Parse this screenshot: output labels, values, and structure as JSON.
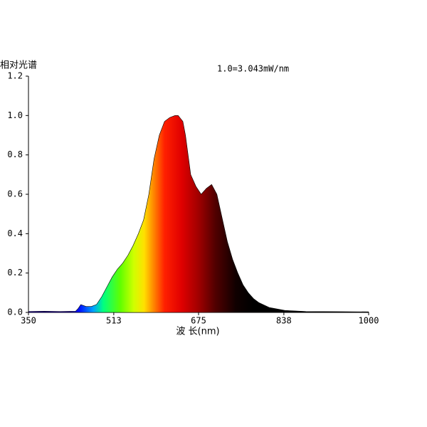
{
  "chart_data": {
    "type": "area",
    "title": "相对光谱",
    "annotation": "1.0=3.043mW/nm",
    "x_label": "波 长(nm)",
    "x": [
      350,
      380,
      410,
      440,
      445,
      450,
      455,
      460,
      470,
      480,
      490,
      500,
      510,
      520,
      530,
      540,
      550,
      560,
      570,
      580,
      590,
      600,
      610,
      620,
      630,
      636,
      645,
      650,
      655,
      660,
      670,
      680,
      690,
      700,
      710,
      720,
      730,
      740,
      750,
      760,
      770,
      780,
      790,
      810,
      840,
      880,
      940,
      1000
    ],
    "values": [
      0.005,
      0.006,
      0.005,
      0.006,
      0.02,
      0.04,
      0.035,
      0.03,
      0.03,
      0.04,
      0.08,
      0.13,
      0.18,
      0.22,
      0.25,
      0.29,
      0.34,
      0.4,
      0.47,
      0.6,
      0.78,
      0.9,
      0.97,
      0.99,
      1.0,
      1.0,
      0.97,
      0.9,
      0.8,
      0.7,
      0.64,
      0.6,
      0.63,
      0.65,
      0.6,
      0.48,
      0.36,
      0.27,
      0.2,
      0.14,
      0.1,
      0.07,
      0.05,
      0.025,
      0.01,
      0.005,
      0.004,
      0.003
    ],
    "xlim": [
      350,
      1000
    ],
    "ylim": [
      0,
      1.2
    ],
    "xticks": [
      350,
      513,
      675,
      838,
      1000
    ],
    "yticks": [
      {
        "value": 0,
        "label": "0.0"
      },
      0.2,
      0.4,
      0.6,
      0.8,
      {
        "value": 1,
        "label": "1.0"
      },
      1.2
    ]
  }
}
